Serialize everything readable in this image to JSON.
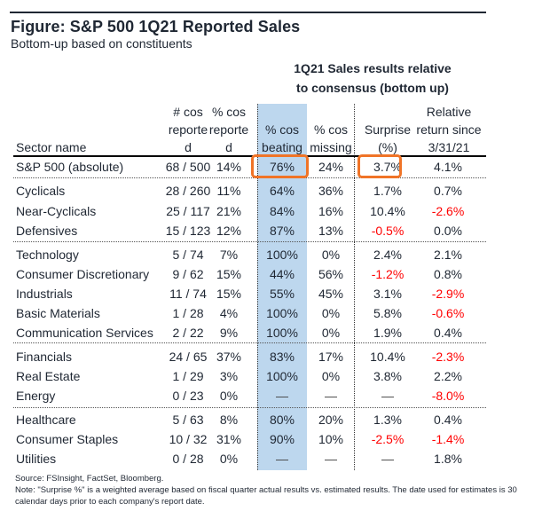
{
  "figure": {
    "title": "Figure: S&P 500 1Q21 Reported Sales",
    "subtitle": "Bottom-up based on constituents",
    "group_header_line1": "1Q21 Sales results relative",
    "group_header_line2": "to consensus (bottom up)"
  },
  "columns": {
    "sector": [
      "",
      "",
      "Sector name"
    ],
    "count_reported": [
      "# cos",
      "reporte",
      "d"
    ],
    "pct_reported": [
      "% cos",
      "reporte",
      "d"
    ],
    "pct_beating": [
      "",
      "% cos",
      "beating"
    ],
    "pct_missing": [
      "",
      "% cos",
      "missing"
    ],
    "surprise": [
      "",
      "Surprise",
      "(%)"
    ],
    "relative_return": [
      "Relative",
      "return since",
      "3/31/21"
    ]
  },
  "rows": [
    {
      "sector": "S&P 500 (absolute)",
      "count": "68 / 500",
      "pct_reported": "14%",
      "beating": "76%",
      "missing": "24%",
      "surprise": "3.7%",
      "surprise_neg": false,
      "rel": "4.1%",
      "rel_neg": false
    },
    {
      "sector": "Cyclicals",
      "count": "28 / 260",
      "pct_reported": "11%",
      "beating": "64%",
      "missing": "36%",
      "surprise": "1.7%",
      "surprise_neg": false,
      "rel": "0.7%",
      "rel_neg": false
    },
    {
      "sector": "Near-Cyclicals",
      "count": "25 / 117",
      "pct_reported": "21%",
      "beating": "84%",
      "missing": "16%",
      "surprise": "10.4%",
      "surprise_neg": false,
      "rel": "-2.6%",
      "rel_neg": true
    },
    {
      "sector": "Defensives",
      "count": "15 / 123",
      "pct_reported": "12%",
      "beating": "87%",
      "missing": "13%",
      "surprise": "-0.5%",
      "surprise_neg": true,
      "rel": "0.0%",
      "rel_neg": false
    },
    {
      "sector": "Technology",
      "count": "5 / 74",
      "pct_reported": "7%",
      "beating": "100%",
      "missing": "0%",
      "surprise": "2.4%",
      "surprise_neg": false,
      "rel": "2.1%",
      "rel_neg": false
    },
    {
      "sector": "Consumer Discretionary",
      "count": "9 / 62",
      "pct_reported": "15%",
      "beating": "44%",
      "missing": "56%",
      "surprise": "-1.2%",
      "surprise_neg": true,
      "rel": "0.8%",
      "rel_neg": false
    },
    {
      "sector": "Industrials",
      "count": "11 / 74",
      "pct_reported": "15%",
      "beating": "55%",
      "missing": "45%",
      "surprise": "3.1%",
      "surprise_neg": false,
      "rel": "-2.9%",
      "rel_neg": true
    },
    {
      "sector": "Basic Materials",
      "count": "1 / 28",
      "pct_reported": "4%",
      "beating": "100%",
      "missing": "0%",
      "surprise": "5.8%",
      "surprise_neg": false,
      "rel": "-0.6%",
      "rel_neg": true
    },
    {
      "sector": "Communication Services",
      "count": "2 / 22",
      "pct_reported": "9%",
      "beating": "100%",
      "missing": "0%",
      "surprise": "1.9%",
      "surprise_neg": false,
      "rel": "0.4%",
      "rel_neg": false
    },
    {
      "sector": "Financials",
      "count": "24 / 65",
      "pct_reported": "37%",
      "beating": "83%",
      "missing": "17%",
      "surprise": "10.4%",
      "surprise_neg": false,
      "rel": "-2.3%",
      "rel_neg": true
    },
    {
      "sector": "Real Estate",
      "count": "1 / 29",
      "pct_reported": "3%",
      "beating": "100%",
      "missing": "0%",
      "surprise": "3.8%",
      "surprise_neg": false,
      "rel": "2.2%",
      "rel_neg": false
    },
    {
      "sector": "Energy",
      "count": "0 / 23",
      "pct_reported": "0%",
      "beating": "—",
      "missing": "—",
      "surprise": "—",
      "surprise_neg": false,
      "rel": "-8.0%",
      "rel_neg": true
    },
    {
      "sector": "Healthcare",
      "count": "5 / 63",
      "pct_reported": "8%",
      "beating": "80%",
      "missing": "20%",
      "surprise": "1.3%",
      "surprise_neg": false,
      "rel": "0.4%",
      "rel_neg": false
    },
    {
      "sector": "Consumer Staples",
      "count": "10 / 32",
      "pct_reported": "31%",
      "beating": "90%",
      "missing": "10%",
      "surprise": "-2.5%",
      "surprise_neg": true,
      "rel": "-1.4%",
      "rel_neg": true
    },
    {
      "sector": "Utilities",
      "count": "0 / 28",
      "pct_reported": "0%",
      "beating": "—",
      "missing": "—",
      "surprise": "—",
      "surprise_neg": false,
      "rel": "1.8%",
      "rel_neg": false
    }
  ],
  "highlights": {
    "beating_sp500": "76%",
    "surprise_sp500": "3.7%"
  },
  "colors": {
    "highlight_column": "#bdd7ee",
    "callout_box": "#f07427",
    "negative": "#ff0000",
    "text": "#1f2733"
  },
  "footer": {
    "source": "Source: FSInsight, FactSet, Bloomberg.",
    "note": "Note: \"Surprise %\" is a weighted average based on fiscal quarter actual results vs. estimated results.  The date used for estimates is 30 calendar days prior to each company's report date."
  }
}
